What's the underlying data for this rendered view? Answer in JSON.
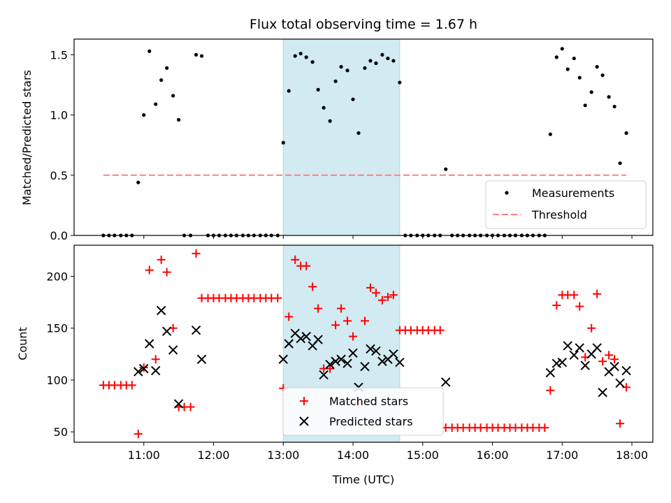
{
  "chart_data": {
    "title": "Flux total observing time = 1.67 h",
    "xlabel": "Time (UTC)",
    "x_tick_labels": [
      "11:00",
      "12:00",
      "13:00",
      "14:00",
      "15:00",
      "16:00",
      "17:00",
      "18:00"
    ],
    "x_tick_hours": [
      11,
      12,
      13,
      14,
      15,
      16,
      17,
      18
    ],
    "xlim_hours": [
      10.0,
      18.3
    ],
    "shaded_span_hours": [
      13.0,
      14.67
    ],
    "colors": {
      "shade": "#add8e6",
      "matched": "#ff0000",
      "predicted": "#000000",
      "threshold": "#ff7f7f",
      "measurement": "#000000"
    },
    "panels": [
      {
        "type": "scatter",
        "ylabel": "Matched/Predicted stars",
        "ylim": [
          0,
          1.63
        ],
        "y_tick_values": [
          0.0,
          0.5,
          1.0,
          1.5
        ],
        "y_tick_labels": [
          "0.0",
          "0.5",
          "1.0",
          "1.5"
        ],
        "threshold": 0.5,
        "threshold_x_range": [
          10.42,
          17.92
        ],
        "legend": {
          "position": "lower right",
          "entries": [
            "Measurements",
            "Threshold"
          ]
        },
        "series": [
          {
            "name": "Measurements",
            "points": [
              [
                10.42,
                0
              ],
              [
                10.5,
                0
              ],
              [
                10.58,
                0
              ],
              [
                10.67,
                0
              ],
              [
                10.75,
                0
              ],
              [
                10.83,
                0
              ],
              [
                10.92,
                0.44
              ],
              [
                11.0,
                1.0
              ],
              [
                11.08,
                1.53
              ],
              [
                11.17,
                1.09
              ],
              [
                11.25,
                1.29
              ],
              [
                11.33,
                1.39
              ],
              [
                11.42,
                1.16
              ],
              [
                11.5,
                0.96
              ],
              [
                11.58,
                0
              ],
              [
                11.67,
                0
              ],
              [
                11.75,
                1.5
              ],
              [
                11.83,
                1.49
              ],
              [
                11.92,
                0
              ],
              [
                12.0,
                0
              ],
              [
                12.08,
                0
              ],
              [
                12.17,
                0
              ],
              [
                12.25,
                0
              ],
              [
                12.33,
                0
              ],
              [
                12.42,
                0
              ],
              [
                12.5,
                0
              ],
              [
                12.58,
                0
              ],
              [
                12.67,
                0
              ],
              [
                12.75,
                0
              ],
              [
                12.83,
                0
              ],
              [
                12.92,
                0
              ],
              [
                13.0,
                0.77
              ],
              [
                13.08,
                1.2
              ],
              [
                13.17,
                1.49
              ],
              [
                13.25,
                1.51
              ],
              [
                13.33,
                1.48
              ],
              [
                13.42,
                1.44
              ],
              [
                13.5,
                1.21
              ],
              [
                13.58,
                1.06
              ],
              [
                13.67,
                0.95
              ],
              [
                13.75,
                1.28
              ],
              [
                13.83,
                1.4
              ],
              [
                13.92,
                1.37
              ],
              [
                14.0,
                1.13
              ],
              [
                14.08,
                0.85
              ],
              [
                14.17,
                1.39
              ],
              [
                14.25,
                1.45
              ],
              [
                14.33,
                1.43
              ],
              [
                14.42,
                1.5
              ],
              [
                14.5,
                1.47
              ],
              [
                14.58,
                1.45
              ],
              [
                14.67,
                1.27
              ],
              [
                14.75,
                0
              ],
              [
                14.83,
                0
              ],
              [
                14.92,
                0
              ],
              [
                15.0,
                0
              ],
              [
                15.08,
                0
              ],
              [
                15.17,
                0
              ],
              [
                15.25,
                0
              ],
              [
                15.33,
                0.55
              ],
              [
                15.42,
                0
              ],
              [
                15.5,
                0
              ],
              [
                15.58,
                0
              ],
              [
                15.67,
                0
              ],
              [
                15.75,
                0
              ],
              [
                15.83,
                0
              ],
              [
                15.92,
                0
              ],
              [
                16.0,
                0
              ],
              [
                16.08,
                0
              ],
              [
                16.17,
                0
              ],
              [
                16.25,
                0
              ],
              [
                16.33,
                0
              ],
              [
                16.42,
                0
              ],
              [
                16.5,
                0
              ],
              [
                16.58,
                0
              ],
              [
                16.67,
                0
              ],
              [
                16.75,
                0
              ],
              [
                16.83,
                0.84
              ],
              [
                16.92,
                1.48
              ],
              [
                17.0,
                1.55
              ],
              [
                17.08,
                1.38
              ],
              [
                17.17,
                1.47
              ],
              [
                17.25,
                1.31
              ],
              [
                17.33,
                1.08
              ],
              [
                17.42,
                1.19
              ],
              [
                17.5,
                1.4
              ],
              [
                17.58,
                1.33
              ],
              [
                17.67,
                1.15
              ],
              [
                17.75,
                1.07
              ],
              [
                17.83,
                0.6
              ],
              [
                17.92,
                0.85
              ]
            ]
          }
        ]
      },
      {
        "type": "scatter",
        "ylabel": "Count",
        "ylim": [
          40,
          230
        ],
        "y_tick_values": [
          50,
          100,
          150,
          200
        ],
        "y_tick_labels": [
          "50",
          "100",
          "150",
          "200"
        ],
        "legend": {
          "position": "lower center",
          "entries": [
            "Matched stars",
            "Predicted stars"
          ]
        },
        "series": [
          {
            "name": "Matched stars",
            "marker": "plus",
            "points": [
              [
                10.42,
                95
              ],
              [
                10.5,
                95
              ],
              [
                10.58,
                95
              ],
              [
                10.67,
                95
              ],
              [
                10.75,
                95
              ],
              [
                10.83,
                95
              ],
              [
                10.92,
                48
              ],
              [
                11.0,
                112
              ],
              [
                11.08,
                206
              ],
              [
                11.17,
                120
              ],
              [
                11.25,
                216
              ],
              [
                11.33,
                204
              ],
              [
                11.42,
                150
              ],
              [
                11.5,
                74
              ],
              [
                11.58,
                74
              ],
              [
                11.67,
                74
              ],
              [
                11.75,
                222
              ],
              [
                11.83,
                179
              ],
              [
                11.92,
                179
              ],
              [
                12.0,
                179
              ],
              [
                12.08,
                179
              ],
              [
                12.17,
                179
              ],
              [
                12.25,
                179
              ],
              [
                12.33,
                179
              ],
              [
                12.42,
                179
              ],
              [
                12.5,
                179
              ],
              [
                12.58,
                179
              ],
              [
                12.67,
                179
              ],
              [
                12.75,
                179
              ],
              [
                12.83,
                179
              ],
              [
                12.92,
                179
              ],
              [
                13.0,
                92
              ],
              [
                13.08,
                161
              ],
              [
                13.17,
                216
              ],
              [
                13.25,
                210
              ],
              [
                13.33,
                210
              ],
              [
                13.42,
                190
              ],
              [
                13.5,
                169
              ],
              [
                13.58,
                111
              ],
              [
                13.67,
                111
              ],
              [
                13.75,
                153
              ],
              [
                13.83,
                169
              ],
              [
                13.92,
                157
              ],
              [
                14.0,
                142
              ],
              [
                14.08,
                78
              ],
              [
                14.17,
                157
              ],
              [
                14.25,
                189
              ],
              [
                14.33,
                184
              ],
              [
                14.42,
                177
              ],
              [
                14.5,
                180
              ],
              [
                14.58,
                182
              ],
              [
                14.67,
                148
              ],
              [
                14.75,
                148
              ],
              [
                14.83,
                148
              ],
              [
                14.92,
                148
              ],
              [
                15.0,
                148
              ],
              [
                15.08,
                148
              ],
              [
                15.17,
                148
              ],
              [
                15.25,
                148
              ],
              [
                15.33,
                54
              ],
              [
                15.42,
                54
              ],
              [
                15.5,
                54
              ],
              [
                15.58,
                54
              ],
              [
                15.67,
                54
              ],
              [
                15.75,
                54
              ],
              [
                15.83,
                54
              ],
              [
                15.92,
                54
              ],
              [
                16.0,
                54
              ],
              [
                16.08,
                54
              ],
              [
                16.17,
                54
              ],
              [
                16.25,
                54
              ],
              [
                16.33,
                54
              ],
              [
                16.42,
                54
              ],
              [
                16.5,
                54
              ],
              [
                16.58,
                54
              ],
              [
                16.67,
                54
              ],
              [
                16.75,
                54
              ],
              [
                16.83,
                90
              ],
              [
                16.92,
                172
              ],
              [
                17.0,
                182
              ],
              [
                17.08,
                182
              ],
              [
                17.17,
                182
              ],
              [
                17.25,
                171
              ],
              [
                17.33,
                122
              ],
              [
                17.42,
                150
              ],
              [
                17.5,
                183
              ],
              [
                17.58,
                118
              ],
              [
                17.67,
                124
              ],
              [
                17.75,
                120
              ],
              [
                17.83,
                58
              ],
              [
                17.92,
                93
              ]
            ]
          },
          {
            "name": "Predicted stars",
            "marker": "x",
            "points": [
              [
                10.92,
                108
              ],
              [
                11.0,
                111
              ],
              [
                11.08,
                135
              ],
              [
                11.17,
                109
              ],
              [
                11.25,
                167
              ],
              [
                11.33,
                147
              ],
              [
                11.42,
                129
              ],
              [
                11.5,
                77
              ],
              [
                11.75,
                148
              ],
              [
                11.83,
                120
              ],
              [
                13.0,
                120
              ],
              [
                13.08,
                135
              ],
              [
                13.17,
                145
              ],
              [
                13.25,
                140
              ],
              [
                13.33,
                142
              ],
              [
                13.42,
                133
              ],
              [
                13.5,
                139
              ],
              [
                13.58,
                105
              ],
              [
                13.67,
                115
              ],
              [
                13.75,
                118
              ],
              [
                13.83,
                120
              ],
              [
                13.92,
                116
              ],
              [
                14.0,
                126
              ],
              [
                14.08,
                93
              ],
              [
                14.17,
                113
              ],
              [
                14.25,
                130
              ],
              [
                14.33,
                128
              ],
              [
                14.42,
                118
              ],
              [
                14.5,
                120
              ],
              [
                14.58,
                125
              ],
              [
                14.67,
                117
              ],
              [
                15.33,
                98
              ],
              [
                16.83,
                107
              ],
              [
                16.92,
                116
              ],
              [
                17.0,
                117
              ],
              [
                17.08,
                133
              ],
              [
                17.17,
                124
              ],
              [
                17.25,
                131
              ],
              [
                17.33,
                114
              ],
              [
                17.42,
                125
              ],
              [
                17.5,
                131
              ],
              [
                17.58,
                88
              ],
              [
                17.67,
                108
              ],
              [
                17.75,
                113
              ],
              [
                17.83,
                97
              ],
              [
                17.92,
                109
              ]
            ]
          }
        ]
      }
    ]
  }
}
